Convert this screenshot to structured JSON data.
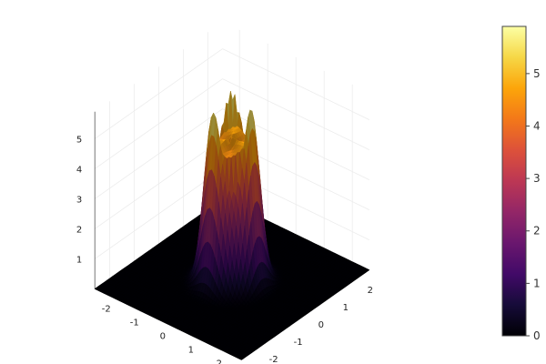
{
  "chart_data": {
    "type": "surface",
    "title": "",
    "xlabel": "",
    "ylabel": "",
    "zlabel": "",
    "x_ticks": [
      "-2",
      "-1",
      "0",
      "1",
      "2"
    ],
    "y_ticks": [
      "-2",
      "-1",
      "0",
      "1",
      "2"
    ],
    "z_ticks": [
      "1",
      "2",
      "3",
      "4",
      "5"
    ],
    "xlim": [
      -2.6,
      2.6
    ],
    "ylim": [
      -2.6,
      2.6
    ],
    "zlim": [
      0,
      5.9
    ],
    "colorbar": {
      "colormap": "inferno",
      "range": [
        0,
        5.9
      ],
      "ticks": [
        "0",
        "1",
        "2",
        "3",
        "4",
        "5"
      ]
    },
    "surface": {
      "shape": "crown",
      "description_of_values": "flat at 0 outside radius ~1.3; rises steeply to a rim of ~5 with three peaks of ~5.9",
      "peak_count": 3,
      "peak_height": 5.9,
      "rim_height": 4.8,
      "base_height": 0,
      "radius": 1.0
    },
    "grid": true,
    "legend": "none"
  }
}
